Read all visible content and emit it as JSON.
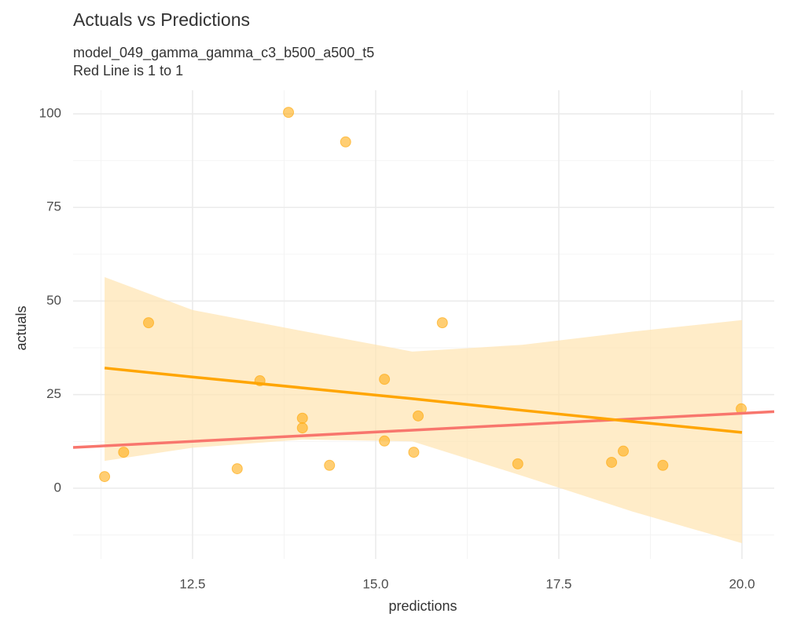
{
  "chart_data": {
    "type": "scatter",
    "title": "Actuals vs Predictions",
    "subtitle": [
      "model_049_gamma_gamma_c3_b500_a500_t5",
      "Red Line is 1 to 1"
    ],
    "x_label": "predictions",
    "y_label": "actuals",
    "x": [
      11.3,
      11.56,
      11.9,
      13.11,
      13.42,
      13.81,
      14.0,
      14.0,
      14.37,
      14.59,
      15.12,
      15.12,
      15.52,
      15.58,
      15.91,
      16.94,
      18.22,
      18.38,
      18.92,
      19.99
    ],
    "values": [
      3.1,
      9.6,
      44.2,
      5.2,
      28.7,
      100.4,
      18.7,
      16.1,
      6.1,
      92.5,
      29.1,
      12.6,
      9.6,
      19.3,
      44.2,
      6.5,
      6.9,
      9.9,
      6.1,
      21.2
    ],
    "color": "#ffa500",
    "fit": {
      "color": "#ffa500",
      "band_color": "#ffe4b0",
      "x": [
        11.3,
        12.5,
        14,
        15.5,
        17,
        18.5,
        20
      ],
      "values": [
        32.1,
        29.7,
        26.8,
        23.9,
        20.8,
        17.8,
        14.9
      ],
      "lower": [
        7.3,
        10.8,
        13.0,
        12.5,
        3.3,
        -6.2,
        -14.7
      ],
      "upper": [
        56.4,
        47.6,
        42.0,
        36.5,
        38.3,
        41.8,
        44.9
      ]
    },
    "reference_line": {
      "slope": 1,
      "intercept": 0,
      "color": "#f8766d"
    },
    "xlim": [
      10.87,
      20.44
    ],
    "ylim": [
      -18.9,
      106.3
    ],
    "xticks": [
      12.5,
      {
        "value": 15,
        "label": "15.0"
      },
      17.5,
      {
        "value": 20,
        "label": "20.0"
      }
    ],
    "yticks": [
      0,
      25,
      50,
      75,
      100
    ],
    "xminor": [
      11.25,
      13.75,
      16.25,
      18.75
    ],
    "yminor": [
      -12.5,
      12.5,
      37.5,
      62.5,
      87.5
    ],
    "grid": true
  }
}
